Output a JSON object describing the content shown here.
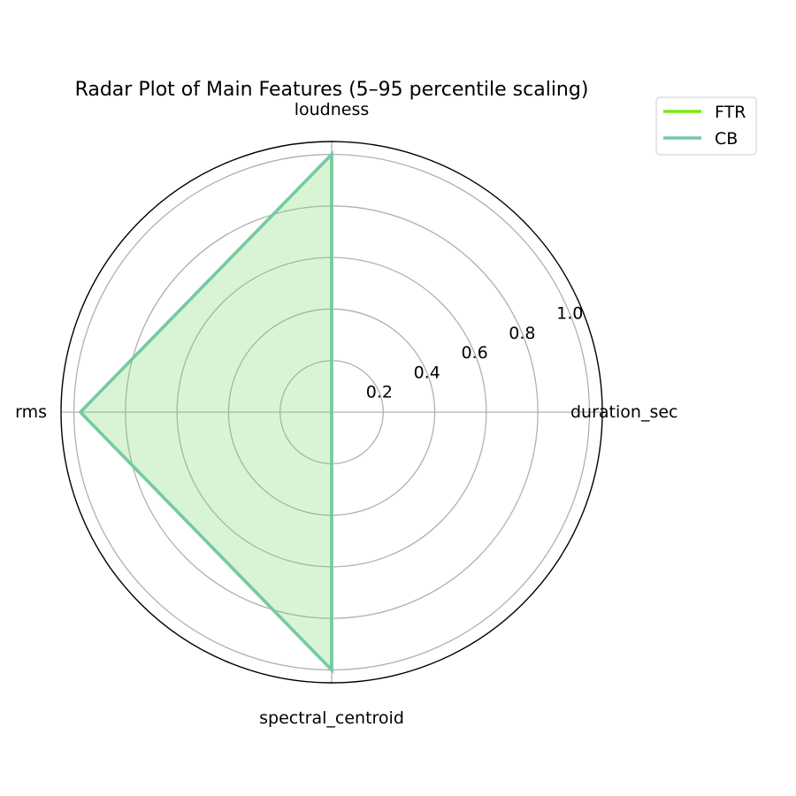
{
  "chart_data": {
    "type": "radar",
    "title": "Radar Plot of Main Features (5–95 percentile scaling)",
    "axes": [
      "duration_sec",
      "loudness",
      "rms",
      "spectral_centroid"
    ],
    "radial_ticks": [
      "0.2",
      "0.4",
      "0.6",
      "0.8",
      "1.0"
    ],
    "radial_tick_values": [
      0.2,
      0.4,
      0.6,
      0.8,
      1.0
    ],
    "rlim": [
      0,
      1.05
    ],
    "grid": true,
    "legend_position": "top-right",
    "series": [
      {
        "name": "FTR",
        "color": "#7CEB12",
        "values": [
          0,
          1.0,
          0.975,
          1.0
        ]
      },
      {
        "name": "CB",
        "color": "#74C9A8",
        "values": [
          0,
          1.0,
          0.975,
          1.0
        ]
      }
    ]
  }
}
